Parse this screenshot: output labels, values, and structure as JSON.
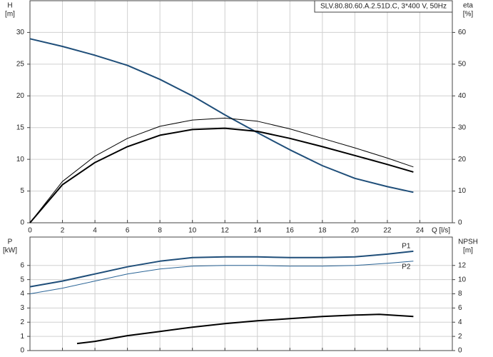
{
  "chart_data": [
    {
      "type": "line",
      "title": "SLV.80.80.60.A.2.51D.C, 3*400 V, 50Hz",
      "ylabel": [
        "H",
        "[m]"
      ],
      "y2label": [
        "eta",
        "[%]"
      ],
      "xlabel": "Q [l/s]",
      "xlim": [
        0,
        26
      ],
      "xticks": [
        0,
        2,
        4,
        6,
        8,
        10,
        12,
        14,
        16,
        18,
        20,
        22,
        24
      ],
      "ylim": [
        0,
        35
      ],
      "yticks": [
        0,
        5,
        10,
        15,
        20,
        25,
        30
      ],
      "y2lim": [
        0,
        70
      ],
      "y2ticks": [
        0,
        10,
        20,
        30,
        40,
        50,
        60
      ],
      "grid": true,
      "series": [
        {
          "color": "#1f4e79",
          "linewidth": 2,
          "x": [
            0,
            2,
            4,
            6,
            8,
            10,
            12,
            14,
            16,
            18,
            20,
            22,
            23.6
          ],
          "values": [
            29,
            27.8,
            26.4,
            24.8,
            22.6,
            20.0,
            17.0,
            14.2,
            11.5,
            9.0,
            7.0,
            5.7,
            4.8
          ]
        },
        {
          "color": "#000000",
          "linewidth": 1,
          "axis": "y2",
          "x": [
            0,
            2,
            4,
            6,
            8,
            10,
            12,
            14,
            16,
            18,
            20,
            22,
            23.6
          ],
          "values": [
            0,
            13,
            21,
            26.6,
            30.4,
            32.4,
            33,
            32,
            29.6,
            26.6,
            23.6,
            20.4,
            17.6
          ]
        },
        {
          "color": "#000000",
          "linewidth": 2,
          "axis": "y2",
          "x": [
            0,
            2,
            4,
            6,
            8,
            10,
            12,
            14,
            16,
            18,
            20,
            22,
            23.6
          ],
          "values": [
            0,
            12,
            19,
            24,
            27.6,
            29.4,
            29.8,
            28.8,
            26.6,
            24,
            21.2,
            18.4,
            16
          ]
        }
      ]
    },
    {
      "type": "line",
      "ylabel": [
        "P",
        "[kW]"
      ],
      "y2label": [
        "NPSH",
        "[m]"
      ],
      "xlim": [
        0,
        26
      ],
      "xticks": [
        0,
        2,
        4,
        6,
        8,
        10,
        12,
        14,
        16,
        18,
        20,
        22,
        24
      ],
      "ylim": [
        0,
        8
      ],
      "yticks": [
        0,
        1,
        2,
        3,
        4,
        5,
        6
      ],
      "y2lim": [
        0,
        16
      ],
      "y2ticks": [
        0,
        2,
        4,
        6,
        8,
        10,
        12
      ],
      "grid": true,
      "series": [
        {
          "name": "P1",
          "color": "#1f4e79",
          "linewidth": 2,
          "x": [
            0,
            2,
            4,
            6,
            8,
            10,
            12,
            14,
            16,
            18,
            20,
            22,
            23.6
          ],
          "values": [
            4.5,
            4.9,
            5.4,
            5.9,
            6.3,
            6.55,
            6.6,
            6.6,
            6.55,
            6.55,
            6.6,
            6.8,
            7.0
          ]
        },
        {
          "name": "P2",
          "color": "#2a6496",
          "linewidth": 1,
          "x": [
            0,
            2,
            4,
            6,
            8,
            10,
            12,
            14,
            16,
            18,
            20,
            22,
            23.6
          ],
          "values": [
            4.0,
            4.4,
            4.9,
            5.4,
            5.75,
            5.95,
            6.0,
            6.0,
            5.95,
            5.95,
            6.0,
            6.15,
            6.3
          ]
        },
        {
          "color": "#000000",
          "linewidth": 2,
          "axis": "y2",
          "x": [
            2.9,
            4,
            6,
            8,
            10,
            12,
            14,
            16,
            18,
            20,
            21.5,
            23.6
          ],
          "values": [
            1.0,
            1.3,
            2.1,
            2.7,
            3.3,
            3.8,
            4.2,
            4.5,
            4.8,
            5.0,
            5.1,
            4.8
          ]
        }
      ]
    }
  ]
}
